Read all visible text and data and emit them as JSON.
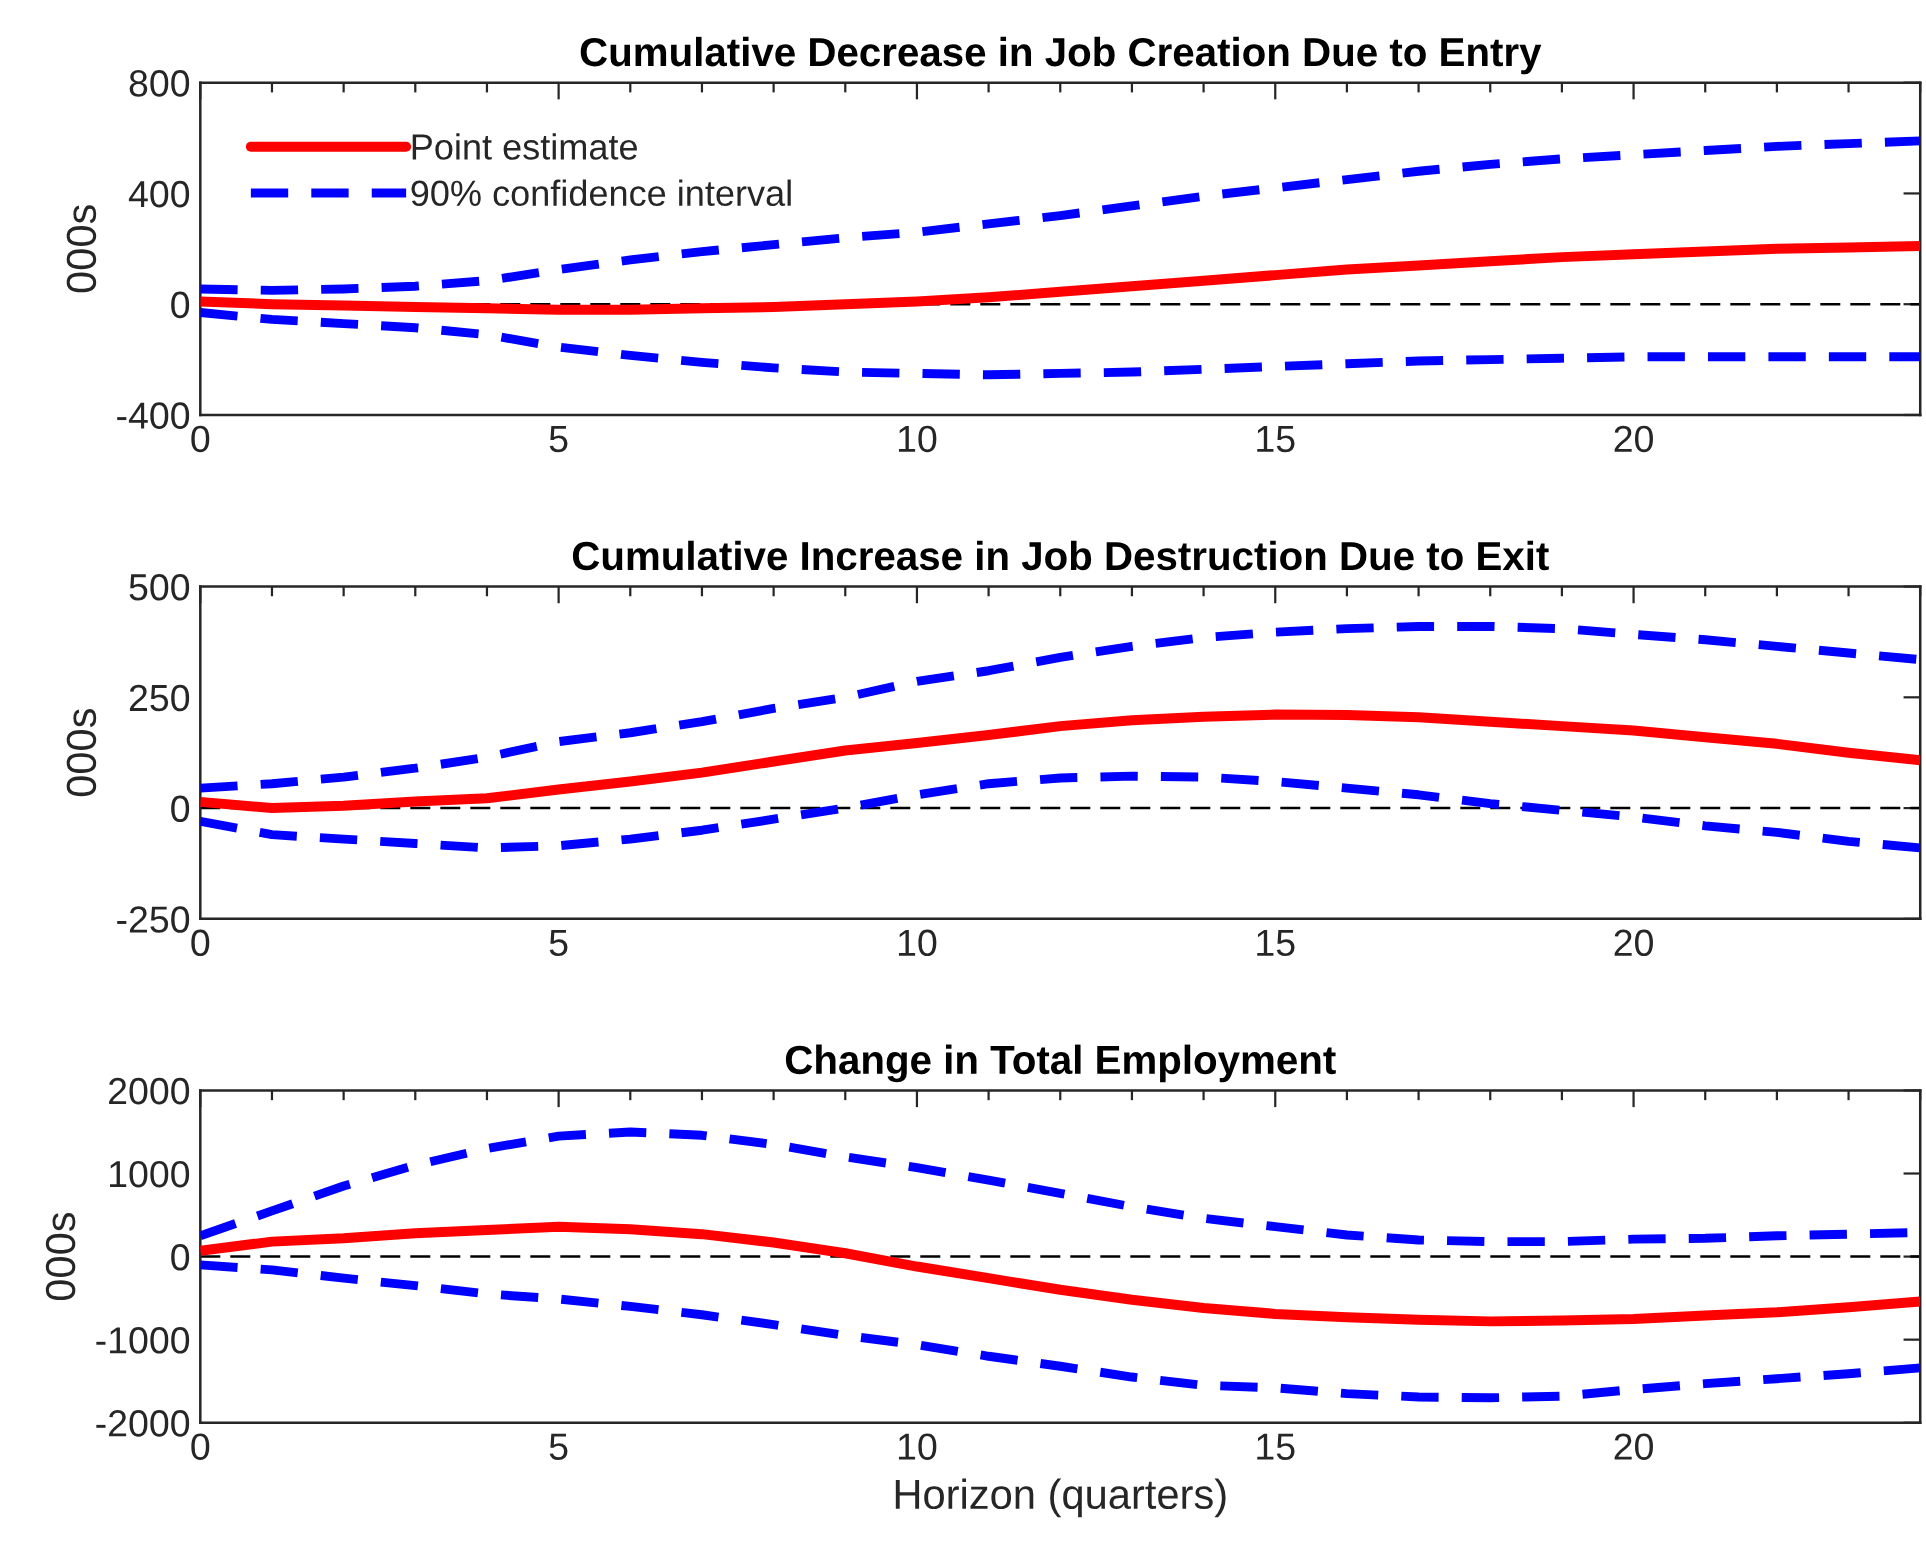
{
  "chart_data": [
    {
      "type": "line",
      "title": "Cumulative Decrease in Job Creation Due to Entry",
      "ylabel": "000s",
      "x": [
        0,
        1,
        2,
        3,
        4,
        5,
        6,
        7,
        8,
        9,
        10,
        11,
        12,
        13,
        14,
        15,
        16,
        17,
        18,
        19,
        20,
        21,
        22,
        23,
        24
      ],
      "xlim": [
        0,
        24
      ],
      "xticks": [
        0,
        5,
        10,
        15,
        20
      ],
      "ylim": [
        -400,
        800
      ],
      "yticks": [
        -400,
        0,
        400,
        800
      ],
      "legend": "top left",
      "ref_lines": [
        {
          "axis": "y",
          "value": 0,
          "color": "#000000",
          "line_style": "dashed"
        }
      ],
      "series": [
        {
          "name": "Point estimate",
          "color": "#ff0000",
          "line_style": "solid",
          "values": [
            10,
            0,
            -5,
            -10,
            -15,
            -20,
            -20,
            -15,
            -10,
            0,
            10,
            25,
            45,
            65,
            85,
            105,
            125,
            140,
            155,
            170,
            180,
            190,
            200,
            205,
            210
          ]
        },
        {
          "name": "90% confidence interval",
          "color": "#0000ff",
          "line_style": "dashed",
          "values": [
            55,
            50,
            55,
            65,
            85,
            125,
            160,
            190,
            215,
            240,
            260,
            290,
            320,
            355,
            390,
            420,
            450,
            480,
            505,
            525,
            540,
            555,
            570,
            580,
            590
          ]
        },
        {
          "color": "#0000ff",
          "line_style": "dashed",
          "values": [
            -30,
            -55,
            -70,
            -85,
            -110,
            -155,
            -185,
            -210,
            -230,
            -245,
            -250,
            -255,
            -250,
            -245,
            -235,
            -225,
            -215,
            -205,
            -200,
            -195,
            -190,
            -190,
            -190,
            -190,
            -190
          ]
        }
      ]
    },
    {
      "type": "line",
      "title": "Cumulative Increase in Job Destruction Due to Exit",
      "ylabel": "000s",
      "x": [
        0,
        1,
        2,
        3,
        4,
        5,
        6,
        7,
        8,
        9,
        10,
        11,
        12,
        13,
        14,
        15,
        16,
        17,
        18,
        19,
        20,
        21,
        22,
        23,
        24
      ],
      "xlim": [
        0,
        24
      ],
      "xticks": [
        0,
        5,
        10,
        15,
        20
      ],
      "ylim": [
        -250,
        500
      ],
      "yticks": [
        -250,
        0,
        250,
        500
      ],
      "ref_lines": [
        {
          "axis": "y",
          "value": 0,
          "color": "#000000",
          "line_style": "dashed"
        }
      ],
      "series": [
        {
          "color": "#ff0000",
          "line_style": "solid",
          "values": [
            14,
            0,
            5,
            15,
            22,
            42,
            60,
            80,
            105,
            130,
            147,
            165,
            185,
            198,
            206,
            211,
            210,
            205,
            195,
            185,
            175,
            160,
            145,
            125,
            108
          ]
        },
        {
          "color": "#0000ff",
          "line_style": "dashed",
          "values": [
            45,
            55,
            70,
            90,
            115,
            150,
            170,
            195,
            225,
            250,
            286,
            310,
            340,
            365,
            385,
            397,
            405,
            410,
            410,
            405,
            392,
            380,
            365,
            350,
            335
          ]
        },
        {
          "color": "#0000ff",
          "line_style": "dashed",
          "values": [
            -30,
            -60,
            -70,
            -80,
            -90,
            -85,
            -70,
            -50,
            -25,
            0,
            30,
            55,
            68,
            72,
            70,
            60,
            45,
            30,
            10,
            -5,
            -20,
            -40,
            -55,
            -75,
            -90
          ]
        }
      ]
    },
    {
      "type": "line",
      "title": "Change in Total Employment",
      "xlabel": "Horizon (quarters)",
      "ylabel": "000s",
      "x": [
        0,
        1,
        2,
        3,
        4,
        5,
        6,
        7,
        8,
        9,
        10,
        11,
        12,
        13,
        14,
        15,
        16,
        17,
        18,
        19,
        20,
        21,
        22,
        23,
        24
      ],
      "xlim": [
        0,
        24
      ],
      "xticks": [
        0,
        5,
        10,
        15,
        20
      ],
      "ylim": [
        -2000,
        2000
      ],
      "yticks": [
        -2000,
        -1000,
        0,
        1000,
        2000
      ],
      "ref_lines": [
        {
          "axis": "y",
          "value": 0,
          "color": "#000000",
          "line_style": "dashed"
        }
      ],
      "series": [
        {
          "color": "#ff0000",
          "line_style": "solid",
          "values": [
            70,
            180,
            220,
            280,
            320,
            360,
            330,
            270,
            170,
            40,
            -120,
            -260,
            -400,
            -520,
            -620,
            -690,
            -730,
            -760,
            -780,
            -770,
            -750,
            -710,
            -670,
            -610,
            -540
          ]
        },
        {
          "color": "#0000ff",
          "line_style": "dashed",
          "values": [
            250,
            550,
            850,
            1100,
            1300,
            1450,
            1500,
            1460,
            1350,
            1200,
            1070,
            920,
            760,
            600,
            460,
            360,
            260,
            200,
            180,
            180,
            210,
            220,
            250,
            270,
            290
          ]
        },
        {
          "color": "#0000ff",
          "line_style": "dashed",
          "values": [
            -100,
            -160,
            -260,
            -350,
            -450,
            -510,
            -600,
            -700,
            -820,
            -950,
            -1060,
            -1200,
            -1320,
            -1450,
            -1550,
            -1580,
            -1650,
            -1690,
            -1700,
            -1680,
            -1600,
            -1530,
            -1470,
            -1410,
            -1340
          ]
        }
      ]
    }
  ]
}
